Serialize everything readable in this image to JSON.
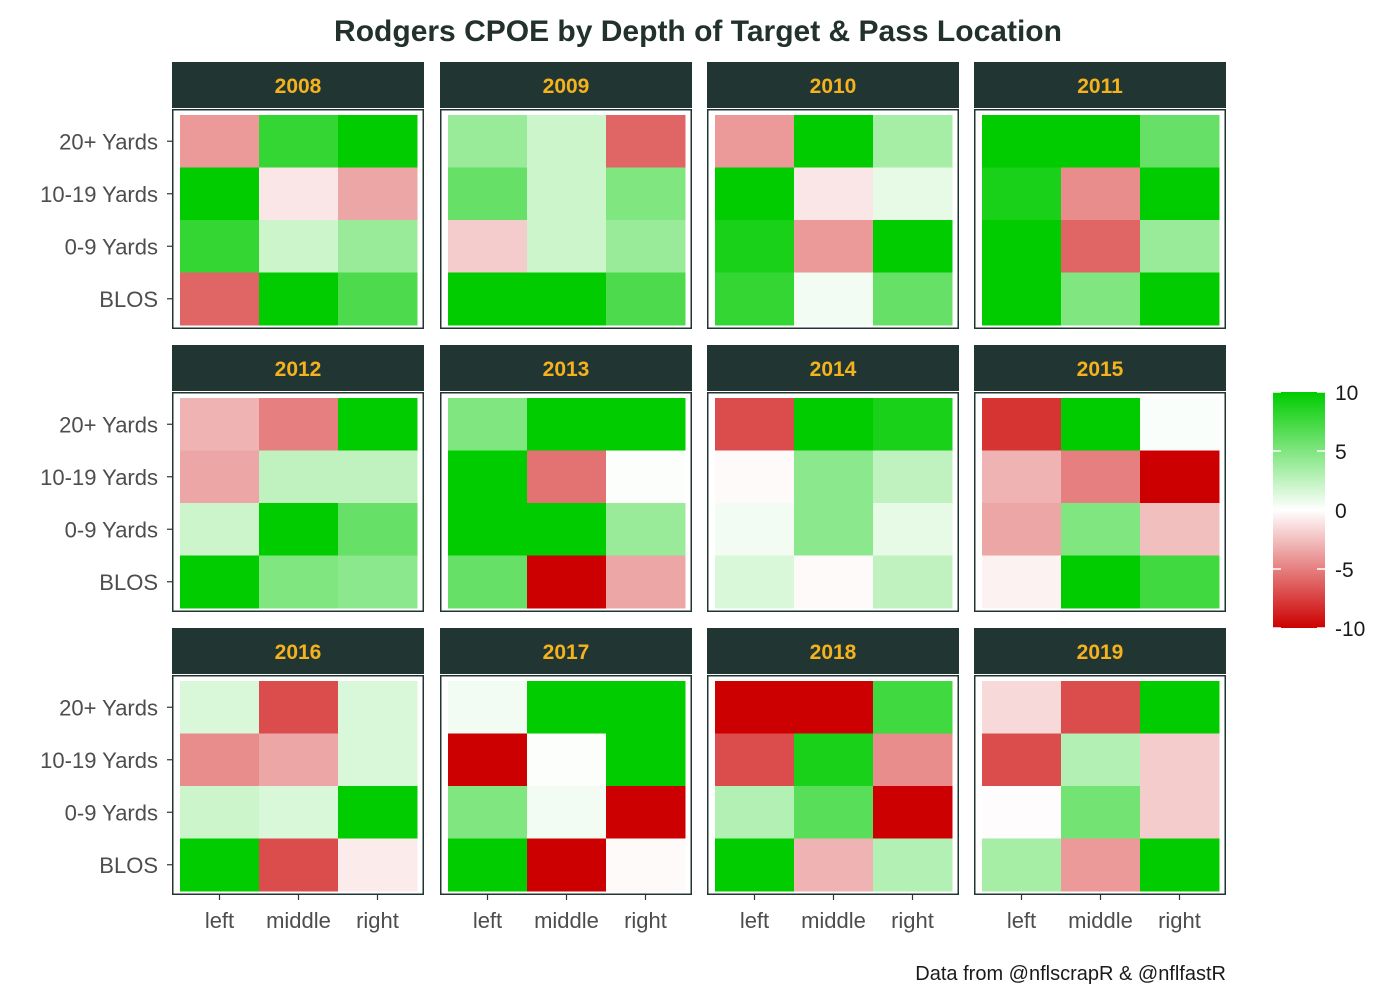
{
  "chart_data": {
    "type": "heatmap",
    "title": "Rodgers CPOE by Depth of Target & Pass Location",
    "caption": "Data from @nflscrapR & @nflfastR",
    "x_categories": [
      "left",
      "middle",
      "right"
    ],
    "y_categories": [
      "20+ Yards",
      "10-19 Yards",
      "0-9 Yards",
      "BLOS"
    ],
    "colors": {
      "low": "#cc0000",
      "mid": "#ffffff",
      "high": "#00cc00",
      "strip_bg": "#213633",
      "strip_text": "#f5b21c",
      "panel_border": "#213633"
    },
    "color_scale": {
      "min": -10,
      "max": 10,
      "midpoint": 0,
      "breaks": [
        10,
        5,
        0,
        -5,
        -10
      ]
    },
    "facets": [
      {
        "year": "2008",
        "values": [
          [
            -4,
            8,
            12
          ],
          [
            10,
            -1,
            -3.5
          ],
          [
            8,
            2,
            4
          ],
          [
            -6,
            12,
            7
          ]
        ]
      },
      {
        "year": "2009",
        "values": [
          [
            4,
            2,
            -6
          ],
          [
            6,
            2,
            5
          ],
          [
            -2,
            2,
            4
          ],
          [
            12,
            12,
            7
          ]
        ]
      },
      {
        "year": "2010",
        "values": [
          [
            -4,
            12,
            3.5
          ],
          [
            12,
            -1,
            1
          ],
          [
            9,
            -4,
            12
          ],
          [
            8,
            0.5,
            6
          ]
        ]
      },
      {
        "year": "2011",
        "values": [
          [
            12,
            12,
            6
          ],
          [
            9,
            -4.5,
            12
          ],
          [
            11,
            -6,
            4
          ],
          [
            10,
            5,
            12
          ]
        ]
      },
      {
        "year": "2012",
        "values": [
          [
            -3,
            -5,
            12
          ],
          [
            -3.5,
            2.5,
            2.5
          ],
          [
            2,
            12,
            6
          ],
          [
            10,
            5,
            4.5
          ]
        ]
      },
      {
        "year": "2013",
        "values": [
          [
            5,
            12,
            12
          ],
          [
            12,
            -5.5,
            0.1
          ],
          [
            12,
            12,
            4
          ],
          [
            6,
            -10,
            -3.5
          ]
        ]
      },
      {
        "year": "2014",
        "values": [
          [
            -7,
            12,
            9
          ],
          [
            -0.2,
            4.5,
            2.5
          ],
          [
            0.5,
            4.5,
            1
          ],
          [
            1.5,
            -0.2,
            2.5
          ]
        ]
      },
      {
        "year": "2015",
        "values": [
          [
            -8,
            12,
            0.2
          ],
          [
            -3,
            -5,
            -12
          ],
          [
            -3.5,
            5,
            -2.5
          ],
          [
            -0.5,
            12,
            7.5
          ]
        ]
      },
      {
        "year": "2016",
        "values": [
          [
            1.5,
            -7,
            1.5
          ],
          [
            -4.5,
            -3.5,
            1.5
          ],
          [
            2,
            1.5,
            12
          ],
          [
            12,
            -7,
            -0.8
          ]
        ]
      },
      {
        "year": "2017",
        "values": [
          [
            0.5,
            12,
            12
          ],
          [
            -11,
            0.1,
            12
          ],
          [
            5,
            0.5,
            -11
          ],
          [
            12,
            -11,
            -0.2
          ]
        ]
      },
      {
        "year": "2018",
        "values": [
          [
            -12,
            -12,
            7.5
          ],
          [
            -7,
            9,
            -4.5
          ],
          [
            3,
            6.5,
            -11
          ],
          [
            12,
            -3,
            3
          ]
        ]
      },
      {
        "year": "2019",
        "values": [
          [
            -1.5,
            -7,
            12
          ],
          [
            -7,
            3,
            -2
          ],
          [
            -0.1,
            5.5,
            -2
          ],
          [
            3.5,
            -4,
            12
          ]
        ]
      }
    ]
  }
}
